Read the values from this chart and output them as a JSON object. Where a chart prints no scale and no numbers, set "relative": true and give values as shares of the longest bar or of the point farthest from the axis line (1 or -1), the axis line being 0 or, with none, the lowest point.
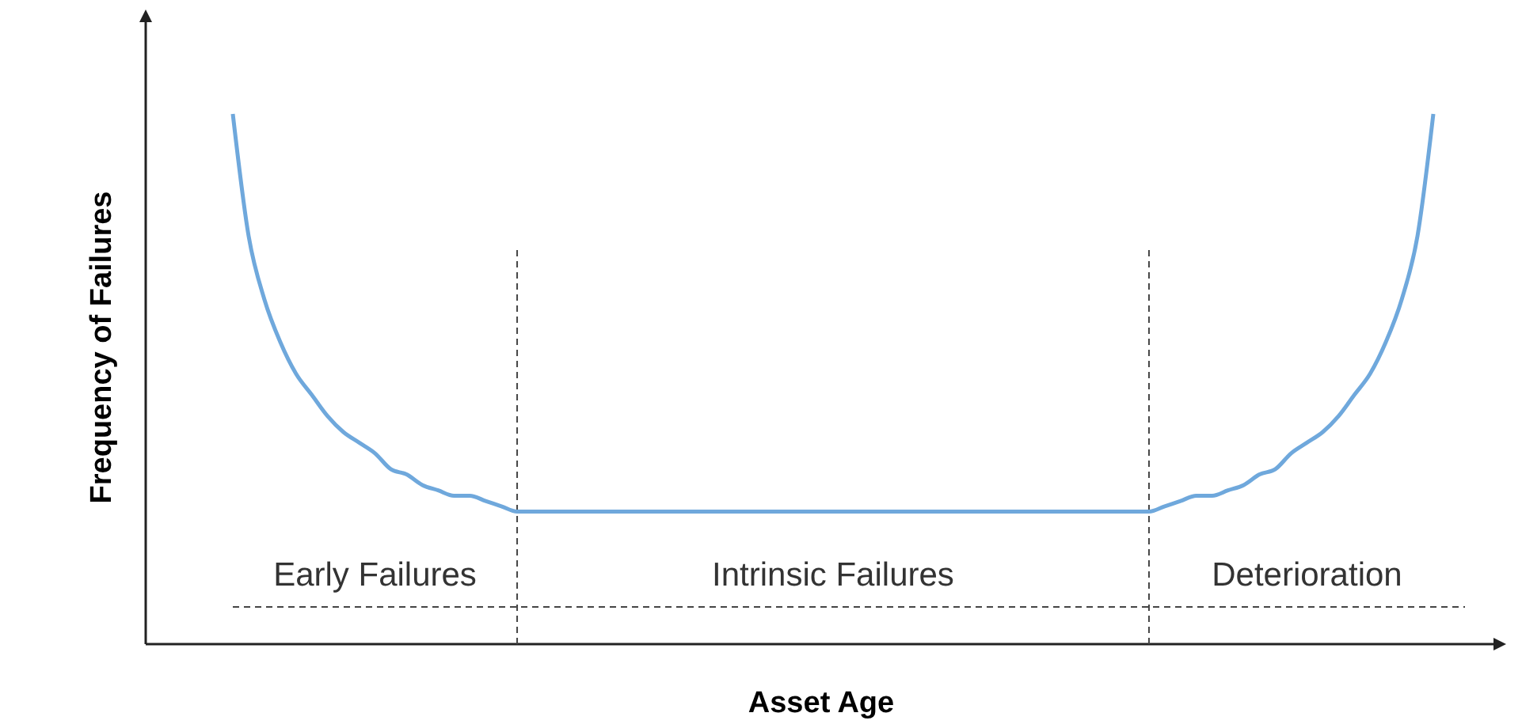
{
  "chart_data": {
    "type": "line",
    "relative": true,
    "xlabel": "Asset Age",
    "ylabel": "Frequency of Failures",
    "categories": [
      null,
      null,
      null,
      null,
      null,
      null,
      null,
      null,
      null,
      null,
      null,
      null,
      null,
      null,
      null,
      null,
      null,
      null,
      null,
      null,
      null,
      null,
      null,
      null,
      null,
      null,
      null,
      null,
      null,
      null,
      null,
      null,
      null,
      null,
      null,
      null,
      null,
      null,
      null,
      null,
      null,
      null,
      null,
      null,
      null,
      null,
      null,
      null,
      null,
      null,
      null,
      null,
      null,
      null,
      null,
      null,
      null,
      null,
      null,
      null,
      null,
      null,
      null,
      null,
      null,
      null,
      null,
      null,
      null,
      null,
      null,
      null,
      null,
      null,
      null,
      null,
      null
    ],
    "series": [
      {
        "color": "#6fa8dc",
        "values": [
          1,
          0.77,
          0.65,
          0.57,
          0.51,
          0.47,
          0.43,
          0.4,
          0.38,
          0.36,
          0.33,
          0.32,
          0.3,
          0.29,
          0.28,
          0.28,
          0.27,
          0.26,
          0.25,
          0.25,
          0.25,
          0.25,
          0.25,
          0.25,
          0.25,
          0.25,
          0.25,
          0.25,
          0.25,
          0.25,
          0.25,
          0.25,
          0.25,
          0.25,
          0.25,
          0.25,
          0.25,
          0.25,
          0.25,
          0.25,
          0.25,
          0.25,
          0.25,
          0.25,
          0.25,
          0.25,
          0.25,
          0.25,
          0.25,
          0.25,
          0.25,
          0.25,
          0.25,
          0.25,
          0.25,
          0.25,
          0.25,
          0.25,
          0.25,
          0.26,
          0.27,
          0.28,
          0.28,
          0.29,
          0.3,
          0.32,
          0.33,
          0.36,
          0.38,
          0.4,
          0.43,
          0.47,
          0.51,
          0.57,
          0.65,
          0.77,
          1
        ]
      }
    ],
    "ref_lines": [
      {
        "axis": "y",
        "value": 0.07,
        "color": "#444444",
        "line_style": "dashed"
      }
    ],
    "annotations": [
      "Early Failures",
      "Intrinsic Failures",
      "Deterioration"
    ],
    "marker": "none",
    "line_style": "solid"
  }
}
